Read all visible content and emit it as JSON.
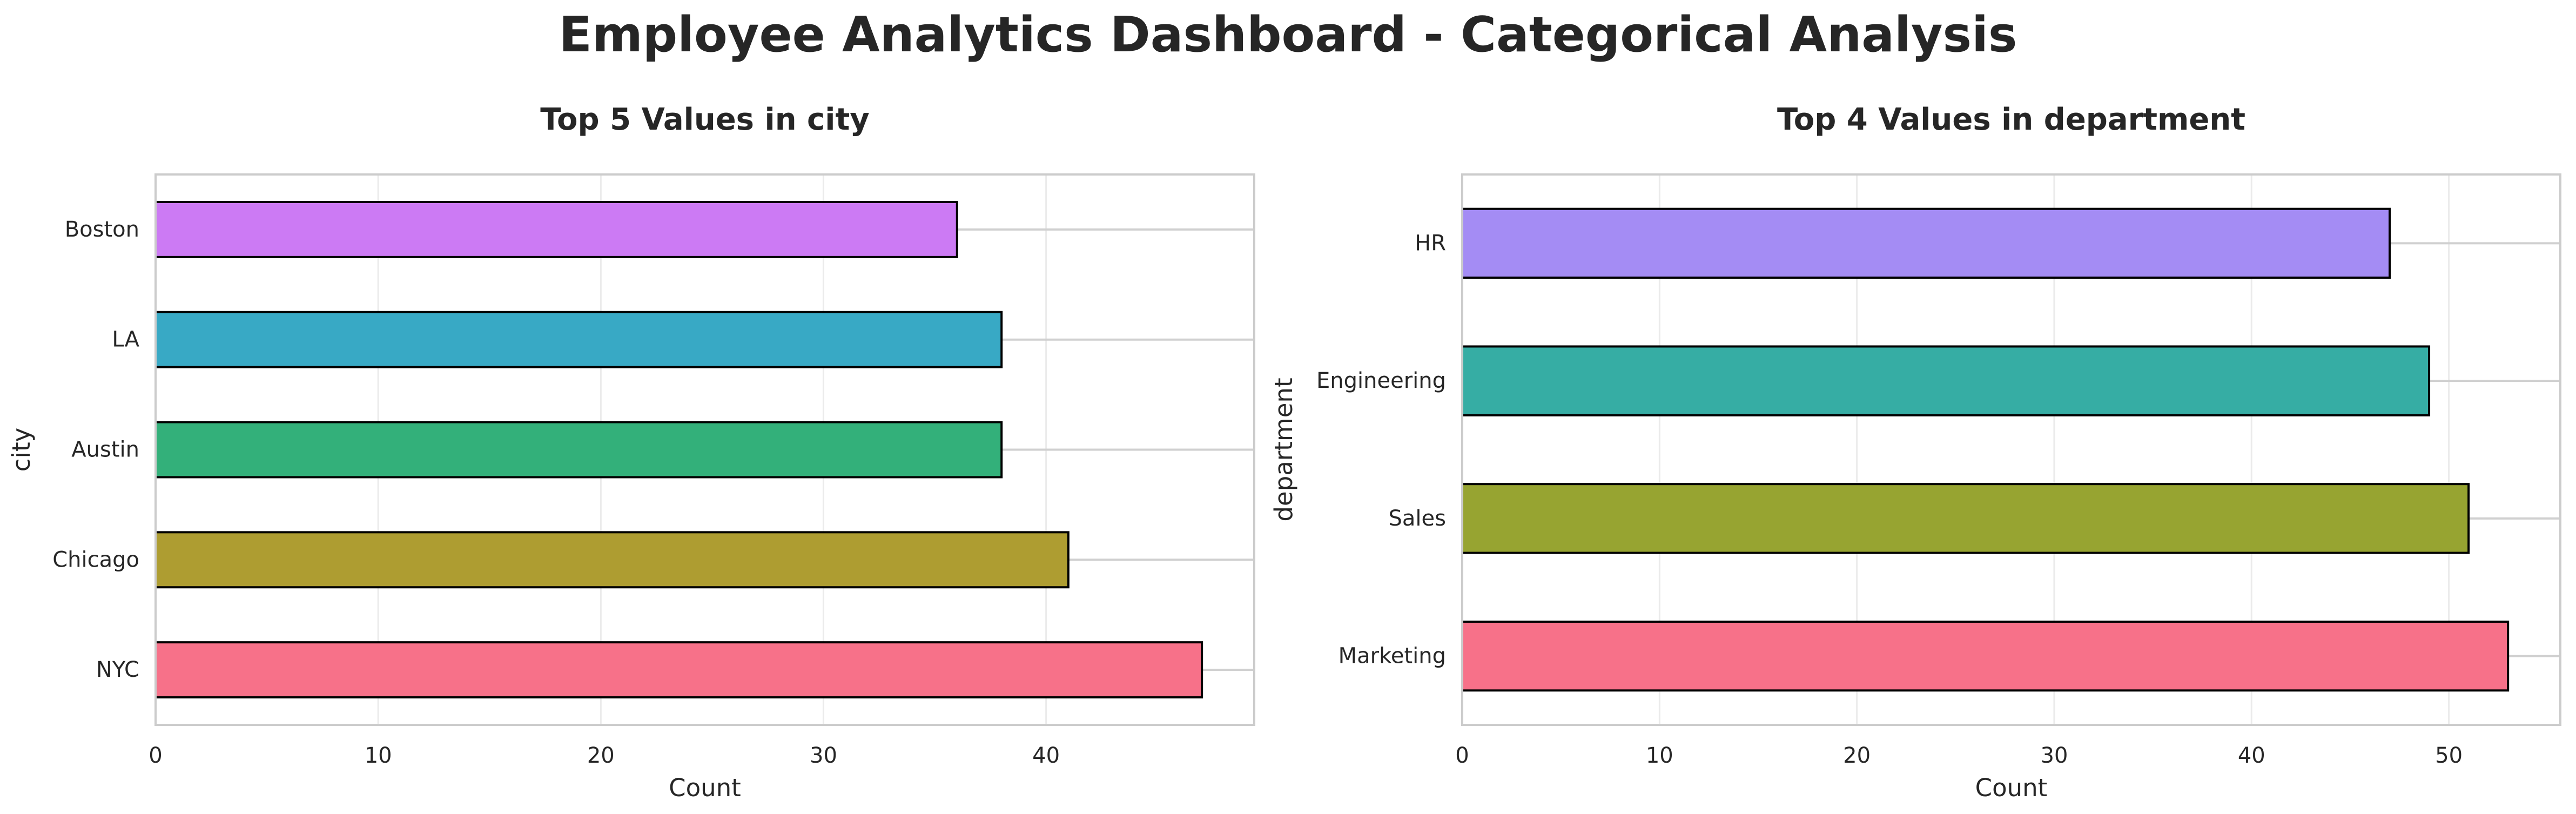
{
  "figure": {
    "suptitle": "Employee Analytics Dashboard - Categorical Analysis"
  },
  "chart_data": [
    {
      "type": "bar",
      "orientation": "horizontal",
      "title": "Top 5 Values in city",
      "xlabel": "Count",
      "ylabel": "city",
      "categories": [
        "NYC",
        "Chicago",
        "Austin",
        "LA",
        "Boston"
      ],
      "values": [
        47,
        41,
        38,
        38,
        36
      ],
      "colors": [
        "#f77189",
        "#ae9d31",
        "#33b07a",
        "#38a9c5",
        "#cc7af4"
      ],
      "xlim": [
        0,
        49.35
      ],
      "xticks": [
        0,
        10,
        20,
        30,
        40
      ],
      "grid": true
    },
    {
      "type": "bar",
      "orientation": "horizontal",
      "title": "Top 4 Values in department",
      "xlabel": "Count",
      "ylabel": "department",
      "categories": [
        "Marketing",
        "Sales",
        "Engineering",
        "HR"
      ],
      "values": [
        53,
        51,
        49,
        47
      ],
      "colors": [
        "#f77189",
        "#97a431",
        "#36ada4",
        "#a48cf4"
      ],
      "xlim": [
        0,
        55.65
      ],
      "xticks": [
        0,
        10,
        20,
        30,
        40,
        50
      ],
      "grid": true
    }
  ]
}
